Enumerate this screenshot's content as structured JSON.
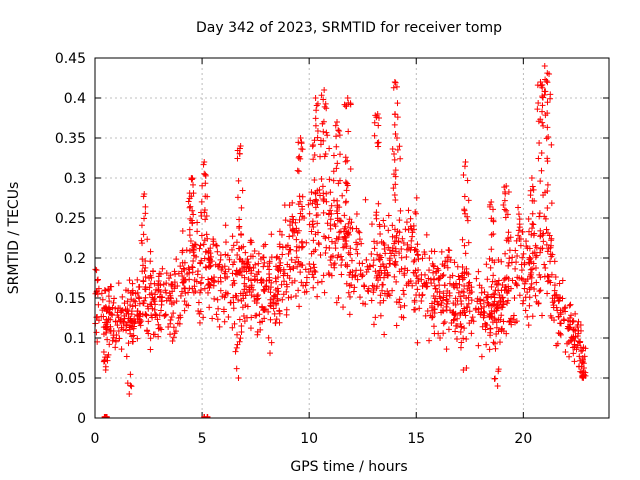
{
  "chart_data": {
    "type": "scatter",
    "title": "Day 342 of 2023, SRMTID for receiver tomp",
    "xlabel": "GPS time / hours",
    "ylabel": "SRMTID / TECUs",
    "xlim": [
      0,
      24
    ],
    "ylim": [
      0,
      0.45
    ],
    "x_ticks": [
      0,
      5,
      10,
      15,
      20
    ],
    "y_ticks": [
      0,
      0.05,
      0.1,
      0.15,
      0.2,
      0.25,
      0.3,
      0.35,
      0.4,
      0.45
    ],
    "grid": true,
    "marker": "+",
    "series_color": "#ff0000",
    "trend": [
      {
        "x": 0.0,
        "y": 0.145
      },
      {
        "x": 0.5,
        "y": 0.12
      },
      {
        "x": 1.0,
        "y": 0.12
      },
      {
        "x": 1.5,
        "y": 0.13
      },
      {
        "x": 2.0,
        "y": 0.135
      },
      {
        "x": 2.5,
        "y": 0.15
      },
      {
        "x": 3.0,
        "y": 0.145
      },
      {
        "x": 3.5,
        "y": 0.15
      },
      {
        "x": 4.0,
        "y": 0.16
      },
      {
        "x": 4.5,
        "y": 0.2
      },
      {
        "x": 5.0,
        "y": 0.19
      },
      {
        "x": 5.5,
        "y": 0.18
      },
      {
        "x": 6.0,
        "y": 0.17
      },
      {
        "x": 6.5,
        "y": 0.18
      },
      {
        "x": 7.0,
        "y": 0.175
      },
      {
        "x": 7.5,
        "y": 0.17
      },
      {
        "x": 8.0,
        "y": 0.16
      },
      {
        "x": 8.5,
        "y": 0.165
      },
      {
        "x": 9.0,
        "y": 0.2
      },
      {
        "x": 9.5,
        "y": 0.22
      },
      {
        "x": 10.0,
        "y": 0.23
      },
      {
        "x": 10.5,
        "y": 0.24
      },
      {
        "x": 11.0,
        "y": 0.24
      },
      {
        "x": 11.5,
        "y": 0.22
      },
      {
        "x": 12.0,
        "y": 0.2
      },
      {
        "x": 12.5,
        "y": 0.19
      },
      {
        "x": 13.0,
        "y": 0.18
      },
      {
        "x": 13.5,
        "y": 0.19
      },
      {
        "x": 14.0,
        "y": 0.2
      },
      {
        "x": 14.5,
        "y": 0.19
      },
      {
        "x": 15.0,
        "y": 0.19
      },
      {
        "x": 15.5,
        "y": 0.17
      },
      {
        "x": 16.0,
        "y": 0.15
      },
      {
        "x": 16.5,
        "y": 0.16
      },
      {
        "x": 17.0,
        "y": 0.14
      },
      {
        "x": 17.5,
        "y": 0.15
      },
      {
        "x": 18.0,
        "y": 0.14
      },
      {
        "x": 18.5,
        "y": 0.13
      },
      {
        "x": 19.0,
        "y": 0.15
      },
      {
        "x": 19.5,
        "y": 0.18
      },
      {
        "x": 20.0,
        "y": 0.2
      },
      {
        "x": 20.5,
        "y": 0.18
      },
      {
        "x": 21.0,
        "y": 0.22
      },
      {
        "x": 21.5,
        "y": 0.16
      },
      {
        "x": 22.0,
        "y": 0.11
      },
      {
        "x": 22.5,
        "y": 0.1
      },
      {
        "x": 22.9,
        "y": 0.07
      }
    ],
    "peaks": [
      {
        "x": 2.3,
        "y": 0.28
      },
      {
        "x": 4.5,
        "y": 0.3
      },
      {
        "x": 5.1,
        "y": 0.32
      },
      {
        "x": 6.8,
        "y": 0.34
      },
      {
        "x": 9.6,
        "y": 0.35
      },
      {
        "x": 10.3,
        "y": 0.4
      },
      {
        "x": 10.7,
        "y": 0.41
      },
      {
        "x": 11.3,
        "y": 0.37
      },
      {
        "x": 11.8,
        "y": 0.4
      },
      {
        "x": 13.2,
        "y": 0.38
      },
      {
        "x": 14.0,
        "y": 0.42
      },
      {
        "x": 14.1,
        "y": 0.35
      },
      {
        "x": 17.3,
        "y": 0.32
      },
      {
        "x": 18.5,
        "y": 0.27
      },
      {
        "x": 19.2,
        "y": 0.29
      },
      {
        "x": 20.4,
        "y": 0.3
      },
      {
        "x": 20.8,
        "y": 0.42
      },
      {
        "x": 21.0,
        "y": 0.44
      },
      {
        "x": 21.2,
        "y": 0.43
      }
    ],
    "lows": [
      {
        "x": 0.5,
        "y": 0.06
      },
      {
        "x": 1.6,
        "y": 0.03
      },
      {
        "x": 6.7,
        "y": 0.05
      },
      {
        "x": 17.2,
        "y": 0.06
      },
      {
        "x": 18.8,
        "y": 0.04
      },
      {
        "x": 22.8,
        "y": 0.05
      }
    ],
    "zero_points": [
      {
        "x": 0.45,
        "y": 0
      },
      {
        "x": 0.5,
        "y": 0
      },
      {
        "x": 0.55,
        "y": 0
      },
      {
        "x": 5.1,
        "y": 0
      },
      {
        "x": 5.25,
        "y": 0
      }
    ]
  }
}
